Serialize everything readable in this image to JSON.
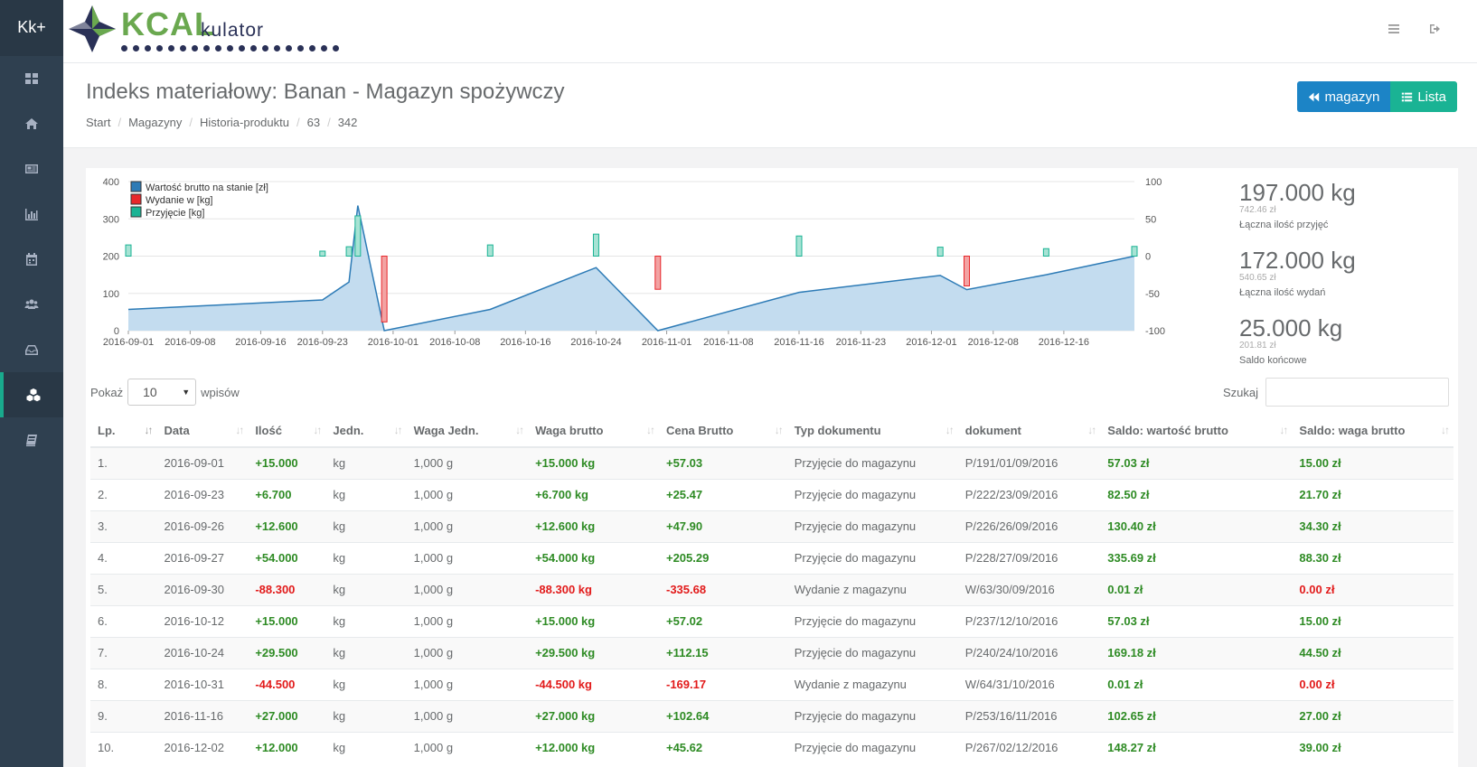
{
  "brand": "Kk+",
  "logo": {
    "main": "KCAL",
    "sub": "kulator"
  },
  "page_title": "Indeks materiałowy: Banan - Magazyn spożywczy",
  "breadcrumb": [
    "Start",
    "Magazyny",
    "Historia-produktu",
    "63",
    "342"
  ],
  "buttons": {
    "magazyn": "magazyn",
    "lista": "Lista"
  },
  "colors": {
    "sidebar": "#2f4050",
    "blue": "#1c84c6",
    "green": "#1ab394",
    "pos": "#2e8b24",
    "neg": "#e21b1b"
  },
  "chart_data": {
    "type": "line",
    "x": [
      "2016-09-01",
      "2016-09-23",
      "2016-09-26",
      "2016-09-27",
      "2016-09-30",
      "2016-10-12",
      "2016-10-24",
      "2016-10-31",
      "2016-11-16",
      "2016-12-02",
      "2016-12-05",
      "2016-12-14",
      "2016-12-24"
    ],
    "x_ticks": [
      "2016-09-01",
      "2016-09-08",
      "2016-09-16",
      "2016-09-23",
      "2016-10-01",
      "2016-10-08",
      "2016-10-16",
      "2016-10-24",
      "2016-11-01",
      "2016-11-08",
      "2016-11-16",
      "2016-11-23",
      "2016-12-01",
      "2016-12-08",
      "2016-12-16"
    ],
    "y_left_ticks": [
      "400",
      "300",
      "200",
      "100",
      "0"
    ],
    "y_right_ticks": [
      "100",
      "50",
      "0",
      "-50",
      "-100"
    ],
    "ylim_left": [
      0,
      400
    ],
    "ylim_right": [
      -100,
      100
    ],
    "legend_position": "top-left",
    "series": [
      {
        "name": "Wartość brutto na stanie [zł]",
        "axis": "left",
        "type": "area",
        "color": "#2d7bb6",
        "values": [
          57.03,
          82.5,
          130.4,
          335.69,
          0.01,
          57.03,
          169.18,
          0.01,
          102.65,
          148.27,
          110,
          150,
          200
        ]
      },
      {
        "name": "Wydanie w [kg]",
        "axis": "right",
        "type": "bar",
        "color": "#e8272b",
        "values": [
          0,
          0,
          0,
          0,
          -88.3,
          0,
          0,
          -44.5,
          0,
          0,
          -40,
          0,
          0
        ]
      },
      {
        "name": "Przyjęcie [kg]",
        "axis": "right",
        "type": "bar",
        "color": "#1ab394",
        "values": [
          15,
          6.7,
          12.6,
          54,
          0,
          15,
          29.5,
          0,
          27,
          12,
          0,
          10,
          13
        ]
      }
    ]
  },
  "stats": [
    {
      "value": "197.000 kg",
      "amount": "742.46 zł",
      "label": "Łączna ilość przyjęć"
    },
    {
      "value": "172.000 kg",
      "amount": "540.65 zł",
      "label": "Łączna ilość wydań"
    },
    {
      "value": "25.000 kg",
      "amount": "201.81 zł",
      "label": "Saldo końcowe"
    }
  ],
  "table_controls": {
    "show_label": "Pokaż",
    "show_value": "10",
    "entries_label": "wpisów",
    "search_label": "Szukaj"
  },
  "table": {
    "headers": [
      "Lp.",
      "Data",
      "Ilość",
      "Jedn.",
      "Waga Jedn.",
      "Waga brutto",
      "Cena Brutto",
      "Typ dokumentu",
      "dokument",
      "Saldo: wartość brutto",
      "Saldo: waga brutto"
    ],
    "rows": [
      {
        "lp": "1.",
        "data": "2016-09-01",
        "ilosc": "+15.000",
        "jedn": "kg",
        "waga_jedn": "1,000 g",
        "waga_brutto": "+15.000 kg",
        "cena": "+57.03",
        "typ": "Przyjęcie do magazynu",
        "dok": "P/191/01/09/2016",
        "saldo_w": "57.03 zł",
        "saldo_g": "15.00 zł",
        "neg": false,
        "zero": false
      },
      {
        "lp": "2.",
        "data": "2016-09-23",
        "ilosc": "+6.700",
        "jedn": "kg",
        "waga_jedn": "1,000 g",
        "waga_brutto": "+6.700 kg",
        "cena": "+25.47",
        "typ": "Przyjęcie do magazynu",
        "dok": "P/222/23/09/2016",
        "saldo_w": "82.50 zł",
        "saldo_g": "21.70 zł",
        "neg": false,
        "zero": false
      },
      {
        "lp": "3.",
        "data": "2016-09-26",
        "ilosc": "+12.600",
        "jedn": "kg",
        "waga_jedn": "1,000 g",
        "waga_brutto": "+12.600 kg",
        "cena": "+47.90",
        "typ": "Przyjęcie do magazynu",
        "dok": "P/226/26/09/2016",
        "saldo_w": "130.40 zł",
        "saldo_g": "34.30 zł",
        "neg": false,
        "zero": false
      },
      {
        "lp": "4.",
        "data": "2016-09-27",
        "ilosc": "+54.000",
        "jedn": "kg",
        "waga_jedn": "1,000 g",
        "waga_brutto": "+54.000 kg",
        "cena": "+205.29",
        "typ": "Przyjęcie do magazynu",
        "dok": "P/228/27/09/2016",
        "saldo_w": "335.69 zł",
        "saldo_g": "88.30 zł",
        "neg": false,
        "zero": false
      },
      {
        "lp": "5.",
        "data": "2016-09-30",
        "ilosc": "-88.300",
        "jedn": "kg",
        "waga_jedn": "1,000 g",
        "waga_brutto": "-88.300 kg",
        "cena": "-335.68",
        "typ": "Wydanie z magazynu",
        "dok": "W/63/30/09/2016",
        "saldo_w": "0.01 zł",
        "saldo_g": "0.00 zł",
        "neg": true,
        "zero": true
      },
      {
        "lp": "6.",
        "data": "2016-10-12",
        "ilosc": "+15.000",
        "jedn": "kg",
        "waga_jedn": "1,000 g",
        "waga_brutto": "+15.000 kg",
        "cena": "+57.02",
        "typ": "Przyjęcie do magazynu",
        "dok": "P/237/12/10/2016",
        "saldo_w": "57.03 zł",
        "saldo_g": "15.00 zł",
        "neg": false,
        "zero": false
      },
      {
        "lp": "7.",
        "data": "2016-10-24",
        "ilosc": "+29.500",
        "jedn": "kg",
        "waga_jedn": "1,000 g",
        "waga_brutto": "+29.500 kg",
        "cena": "+112.15",
        "typ": "Przyjęcie do magazynu",
        "dok": "P/240/24/10/2016",
        "saldo_w": "169.18 zł",
        "saldo_g": "44.50 zł",
        "neg": false,
        "zero": false
      },
      {
        "lp": "8.",
        "data": "2016-10-31",
        "ilosc": "-44.500",
        "jedn": "kg",
        "waga_jedn": "1,000 g",
        "waga_brutto": "-44.500 kg",
        "cena": "-169.17",
        "typ": "Wydanie z magazynu",
        "dok": "W/64/31/10/2016",
        "saldo_w": "0.01 zł",
        "saldo_g": "0.00 zł",
        "neg": true,
        "zero": true
      },
      {
        "lp": "9.",
        "data": "2016-11-16",
        "ilosc": "+27.000",
        "jedn": "kg",
        "waga_jedn": "1,000 g",
        "waga_brutto": "+27.000 kg",
        "cena": "+102.64",
        "typ": "Przyjęcie do magazynu",
        "dok": "P/253/16/11/2016",
        "saldo_w": "102.65 zł",
        "saldo_g": "27.00 zł",
        "neg": false,
        "zero": false
      },
      {
        "lp": "10.",
        "data": "2016-12-02",
        "ilosc": "+12.000",
        "jedn": "kg",
        "waga_jedn": "1,000 g",
        "waga_brutto": "+12.000 kg",
        "cena": "+45.62",
        "typ": "Przyjęcie do magazynu",
        "dok": "P/267/02/12/2016",
        "saldo_w": "148.27 zł",
        "saldo_g": "39.00 zł",
        "neg": false,
        "zero": false
      }
    ]
  }
}
